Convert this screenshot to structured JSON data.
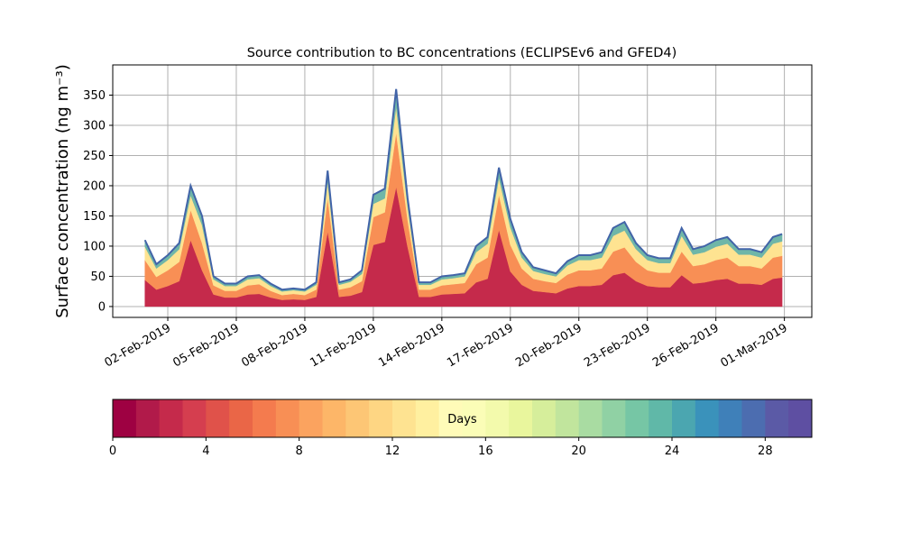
{
  "chart_data": {
    "type": "stackplot",
    "title": "Source contribution to BC concentrations (ECLIPSEv6 and GFED4)",
    "ylabel": "Surface concentration (ng m⁻³)",
    "x": [
      1.0,
      1.5,
      2.0,
      2.5,
      3.0,
      3.5,
      4.0,
      4.5,
      5.0,
      5.5,
      6.0,
      6.5,
      7.0,
      7.5,
      8.0,
      8.5,
      9.0,
      9.5,
      10.0,
      10.5,
      11.0,
      11.5,
      12.0,
      12.5,
      13.0,
      13.5,
      14.0,
      14.5,
      15.0,
      15.5,
      16.0,
      16.5,
      17.0,
      17.5,
      18.0,
      18.5,
      19.0,
      19.5,
      20.0,
      20.5,
      21.0,
      21.5,
      22.0,
      22.5,
      23.0,
      23.5,
      24.0,
      24.5,
      25.0,
      25.5,
      26.0,
      26.5,
      27.0,
      27.5,
      28.0,
      28.5,
      28.9
    ],
    "series": [
      {
        "color": "#c52a4b",
        "values": [
          44,
          28,
          34,
          42,
          110,
          60,
          20,
          15,
          15,
          20,
          21,
          15,
          11,
          12,
          11,
          16,
          124,
          16,
          18,
          24,
          102,
          107,
          198,
          99,
          16,
          16,
          20,
          21,
          22,
          40,
          46,
          127,
          58,
          36,
          26,
          24,
          22,
          30,
          34,
          34,
          36,
          52,
          56,
          42,
          34,
          32,
          32,
          52,
          38,
          40,
          44,
          46,
          38,
          38,
          36,
          46,
          48
        ]
      },
      {
        "color": "#f88f55",
        "values": [
          33,
          21,
          26,
          32,
          50,
          45,
          15,
          11,
          11,
          15,
          16,
          11,
          8,
          9,
          8,
          12,
          56,
          12,
          14,
          18,
          46,
          49,
          90,
          45,
          12,
          12,
          15,
          16,
          17,
          30,
          35,
          58,
          44,
          27,
          20,
          18,
          17,
          23,
          26,
          26,
          27,
          39,
          42,
          32,
          26,
          24,
          24,
          39,
          29,
          30,
          33,
          35,
          29,
          29,
          27,
          35,
          36
        ]
      },
      {
        "color": "#fee391",
        "values": [
          22,
          14,
          17,
          21,
          24,
          30,
          10,
          8,
          8,
          10,
          10,
          8,
          6,
          6,
          6,
          8,
          27,
          8,
          9,
          12,
          22,
          23,
          43,
          22,
          8,
          8,
          10,
          10,
          11,
          20,
          23,
          28,
          29,
          18,
          13,
          12,
          11,
          15,
          17,
          17,
          18,
          26,
          28,
          21,
          17,
          16,
          16,
          26,
          19,
          20,
          22,
          23,
          19,
          19,
          18,
          23,
          24
        ]
      },
      {
        "color": "#6fb6a8",
        "values": [
          11,
          7,
          8,
          10,
          16,
          15,
          5,
          4,
          4,
          5,
          5,
          4,
          3,
          3,
          3,
          4,
          18,
          4,
          4,
          6,
          15,
          16,
          29,
          14,
          4,
          4,
          5,
          5,
          5,
          10,
          11,
          17,
          14,
          9,
          6,
          6,
          5,
          7,
          8,
          8,
          9,
          13,
          14,
          10,
          8,
          8,
          8,
          13,
          9,
          10,
          11,
          11,
          9,
          9,
          9,
          11,
          12
        ]
      }
    ],
    "edge_color": "#4264a8",
    "xlim": [
      -0.41,
      30.2
    ],
    "ylim": [
      -18,
      400
    ],
    "xticks": [
      {
        "value": 2,
        "label": "02-Feb-2019"
      },
      {
        "value": 5,
        "label": "05-Feb-2019"
      },
      {
        "value": 8,
        "label": "08-Feb-2019"
      },
      {
        "value": 11,
        "label": "11-Feb-2019"
      },
      {
        "value": 14,
        "label": "14-Feb-2019"
      },
      {
        "value": 17,
        "label": "17-Feb-2019"
      },
      {
        "value": 20,
        "label": "20-Feb-2019"
      },
      {
        "value": 23,
        "label": "23-Feb-2019"
      },
      {
        "value": 26,
        "label": "26-Feb-2019"
      },
      {
        "value": 29,
        "label": "01-Mar-2019"
      }
    ],
    "yticks": [
      0,
      50,
      100,
      150,
      200,
      250,
      300,
      350
    ],
    "grid": true,
    "colorbar": {
      "label": "Days",
      "lim": [
        0,
        30
      ],
      "ticks": [
        0,
        4,
        8,
        12,
        16,
        20,
        24,
        28
      ],
      "colors": [
        "#9e0142",
        "#b11a4a",
        "#c52a4b",
        "#d53e4f",
        "#e0524a",
        "#ea6647",
        "#f47b4e",
        "#f88f55",
        "#fba35f",
        "#fdb668",
        "#fdc675",
        "#fed683",
        "#fee391",
        "#fff0a0",
        "#fffbb8",
        "#fbfdb7",
        "#f3faac",
        "#e9f69d",
        "#d6ee9b",
        "#c1e59d",
        "#a9dca2",
        "#90d1a4",
        "#76c6a5",
        "#60b8a8",
        "#4ba6b0",
        "#3a92bb",
        "#3f80b9",
        "#4c6db0",
        "#5b5aa6",
        "#5e4fa2"
      ]
    }
  }
}
